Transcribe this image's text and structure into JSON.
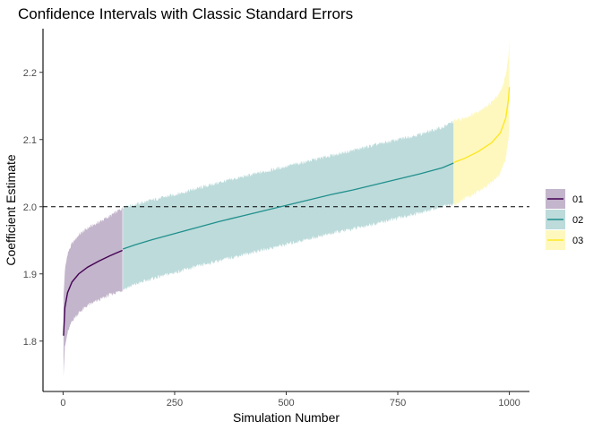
{
  "chart_data": {
    "type": "line",
    "title": "Confidence Intervals with Classic Standard Errors",
    "xlabel": "Simulation Number",
    "ylabel": "Coefficient Estimate",
    "xlim": [
      -45,
      1045
    ],
    "ylim": [
      1.725,
      2.265
    ],
    "x_ticks": [
      0,
      250,
      500,
      750,
      1000
    ],
    "x_tick_labels": [
      "0",
      "250",
      "500",
      "750",
      "1000"
    ],
    "y_ticks": [
      1.8,
      1.9,
      2.0,
      2.1,
      2.2
    ],
    "y_tick_labels": [
      "1.8",
      "1.9",
      "2.0",
      "2.1",
      "2.2"
    ],
    "reference_line": {
      "y": 2.0,
      "style": "dashed",
      "color": "#000000"
    },
    "grid": false,
    "legend_position": "right",
    "series": [
      {
        "name": "01",
        "line_color": "#440154",
        "fill_color": "#c3b5cb",
        "points": [
          {
            "x": 1,
            "est": 1.808,
            "lo": 1.75,
            "hi": 1.865
          },
          {
            "x": 4,
            "est": 1.85,
            "lo": 1.79,
            "hi": 1.905
          },
          {
            "x": 10,
            "est": 1.872,
            "lo": 1.812,
            "hi": 1.93
          },
          {
            "x": 20,
            "est": 1.888,
            "lo": 1.83,
            "hi": 1.945
          },
          {
            "x": 35,
            "est": 1.9,
            "lo": 1.842,
            "hi": 1.958
          },
          {
            "x": 55,
            "est": 1.91,
            "lo": 1.853,
            "hi": 1.968
          },
          {
            "x": 80,
            "est": 1.919,
            "lo": 1.861,
            "hi": 1.977
          },
          {
            "x": 105,
            "est": 1.927,
            "lo": 1.869,
            "hi": 1.986
          },
          {
            "x": 133,
            "est": 1.935,
            "lo": 1.876,
            "hi": 1.998
          }
        ]
      },
      {
        "name": "02",
        "line_color": "#21908c",
        "fill_color": "#bddbdb",
        "points": [
          {
            "x": 134,
            "est": 1.937,
            "lo": 1.877,
            "hi": 2.0
          },
          {
            "x": 160,
            "est": 1.943,
            "lo": 1.884,
            "hi": 2.003
          },
          {
            "x": 200,
            "est": 1.951,
            "lo": 1.893,
            "hi": 2.01
          },
          {
            "x": 250,
            "est": 1.96,
            "lo": 1.902,
            "hi": 2.018
          },
          {
            "x": 300,
            "est": 1.969,
            "lo": 1.911,
            "hi": 2.027
          },
          {
            "x": 350,
            "est": 1.978,
            "lo": 1.92,
            "hi": 2.036
          },
          {
            "x": 400,
            "est": 1.986,
            "lo": 1.928,
            "hi": 2.044
          },
          {
            "x": 450,
            "est": 1.994,
            "lo": 1.936,
            "hi": 2.052
          },
          {
            "x": 500,
            "est": 2.002,
            "lo": 1.944,
            "hi": 2.06
          },
          {
            "x": 550,
            "est": 2.01,
            "lo": 1.952,
            "hi": 2.068
          },
          {
            "x": 600,
            "est": 2.018,
            "lo": 1.96,
            "hi": 2.076
          },
          {
            "x": 650,
            "est": 2.025,
            "lo": 1.967,
            "hi": 2.084
          },
          {
            "x": 700,
            "est": 2.033,
            "lo": 1.975,
            "hi": 2.092
          },
          {
            "x": 750,
            "est": 2.041,
            "lo": 1.983,
            "hi": 2.1
          },
          {
            "x": 800,
            "est": 2.049,
            "lo": 1.991,
            "hi": 2.108
          },
          {
            "x": 850,
            "est": 2.058,
            "lo": 2.0,
            "hi": 2.118
          },
          {
            "x": 875,
            "est": 2.065,
            "lo": 2.004,
            "hi": 2.127
          }
        ]
      },
      {
        "name": "03",
        "line_color": "#fde725",
        "fill_color": "#fef8bf",
        "points": [
          {
            "x": 876,
            "est": 2.066,
            "lo": 2.002,
            "hi": 2.128
          },
          {
            "x": 900,
            "est": 2.072,
            "lo": 2.012,
            "hi": 2.132
          },
          {
            "x": 930,
            "est": 2.082,
            "lo": 2.022,
            "hi": 2.142
          },
          {
            "x": 960,
            "est": 2.095,
            "lo": 2.035,
            "hi": 2.155
          },
          {
            "x": 980,
            "est": 2.11,
            "lo": 2.05,
            "hi": 2.17
          },
          {
            "x": 992,
            "est": 2.132,
            "lo": 2.072,
            "hi": 2.195
          },
          {
            "x": 998,
            "est": 2.16,
            "lo": 2.1,
            "hi": 2.225
          },
          {
            "x": 1000,
            "est": 2.178,
            "lo": 2.118,
            "hi": 2.248
          }
        ]
      }
    ]
  }
}
